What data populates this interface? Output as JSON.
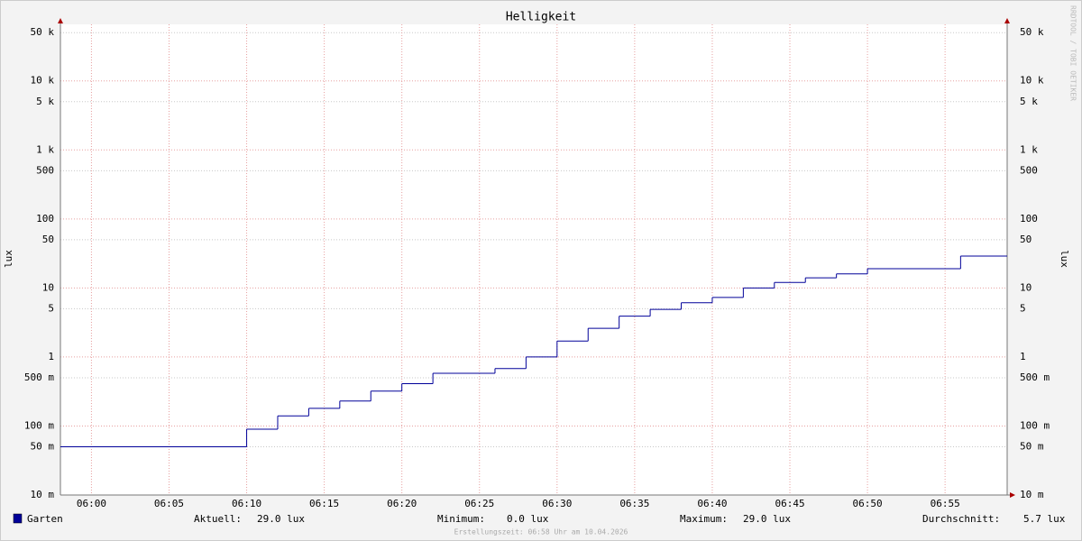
{
  "chart_data": {
    "type": "line",
    "title": "Helligkeit",
    "y_label": "lux",
    "x": [
      "05:58",
      "06:10",
      "06:12",
      "06:14",
      "06:16",
      "06:18",
      "06:20",
      "06:22",
      "06:26",
      "06:28",
      "06:30",
      "06:32",
      "06:34",
      "06:36",
      "06:38",
      "06:40",
      "06:42",
      "06:44",
      "06:46",
      "06:48",
      "06:50",
      "06:56"
    ],
    "series": [
      {
        "name": "Garten",
        "color": "#000099",
        "values": [
          0.05,
          0.09,
          0.14,
          0.18,
          0.23,
          0.32,
          0.41,
          0.58,
          0.68,
          1.0,
          1.7,
          2.6,
          3.9,
          4.9,
          6.1,
          7.3,
          10,
          12,
          14,
          16,
          19,
          29
        ]
      }
    ],
    "xlim": [
      "05:58",
      "06:59"
    ],
    "xticks": [
      "06:00",
      "06:05",
      "06:10",
      "06:15",
      "06:20",
      "06:25",
      "06:30",
      "06:35",
      "06:40",
      "06:45",
      "06:50",
      "06:55"
    ],
    "ylim": [
      0.01,
      66000
    ],
    "log_y": true,
    "grid": true,
    "yticks": [
      {
        "value": 0.01,
        "label": "10 m"
      },
      {
        "value": 0.05,
        "label": "50 m"
      },
      {
        "value": 0.1,
        "label": "100 m"
      },
      {
        "value": 0.5,
        "label": "500 m"
      },
      1,
      5,
      10,
      50,
      100,
      500,
      {
        "value": 1000,
        "label": "1 k"
      },
      {
        "value": 5000,
        "label": "5 k"
      },
      {
        "value": 10000,
        "label": "10 k"
      },
      {
        "value": 50000,
        "label": "50 k"
      }
    ],
    "stats": [
      {
        "label": "Aktuell:",
        "value": "29.0 lux"
      },
      {
        "label": "Minimum:",
        "value": "0.0 lux"
      },
      {
        "label": "Maximum:",
        "value": "29.0 lux"
      },
      {
        "label": "Durchschnitt:",
        "value": "5.7 lux"
      }
    ],
    "footer": "Erstellungszeit: 06:58 Uhr am 10.04.2026",
    "watermark": "RRDTOOL / TOBI OETIKER"
  }
}
